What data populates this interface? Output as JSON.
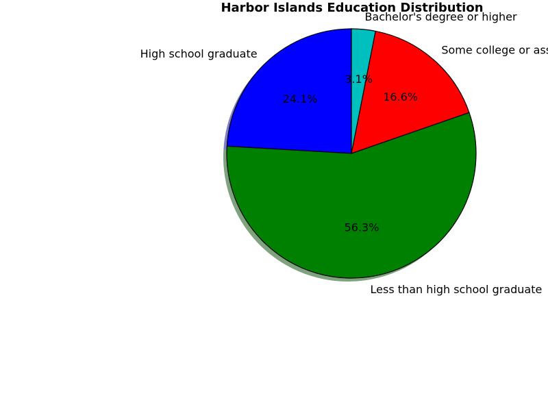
{
  "chart_data": {
    "type": "pie",
    "title": "Harbor Islands Education Distribution",
    "start_angle_deg": 90,
    "direction": "counterclockwise",
    "shadow": true,
    "slices": [
      {
        "label": "High school graduate",
        "value": 24.1,
        "pct_label": "24.1%",
        "color": "#0000ff"
      },
      {
        "label": "Less than high school graduate",
        "value": 56.3,
        "pct_label": "56.3%",
        "color": "#008000"
      },
      {
        "label": "Some college or associate's degree",
        "value": 16.6,
        "pct_label": "16.6%",
        "color": "#ff0000"
      },
      {
        "label": "Bachelor's degree or higher",
        "value": 3.1,
        "pct_label": "3.1%",
        "color": "#00bfbf"
      }
    ]
  }
}
